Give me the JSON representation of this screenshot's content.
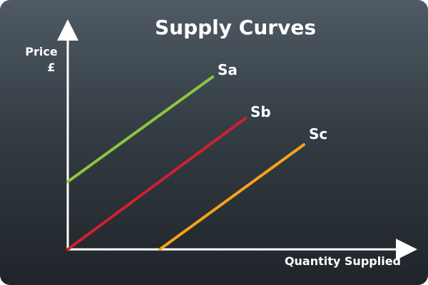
{
  "diagram": {
    "title": "Supply Curves",
    "y_axis_label_line1": "Price",
    "y_axis_label_line2": "£",
    "x_axis_label": "Quantity Supplied",
    "curves": [
      {
        "label": "Sa",
        "color": "#8cc63f"
      },
      {
        "label": "Sb",
        "color": "#d0202e"
      },
      {
        "label": "Sc",
        "color": "#f7a21b"
      }
    ]
  }
}
